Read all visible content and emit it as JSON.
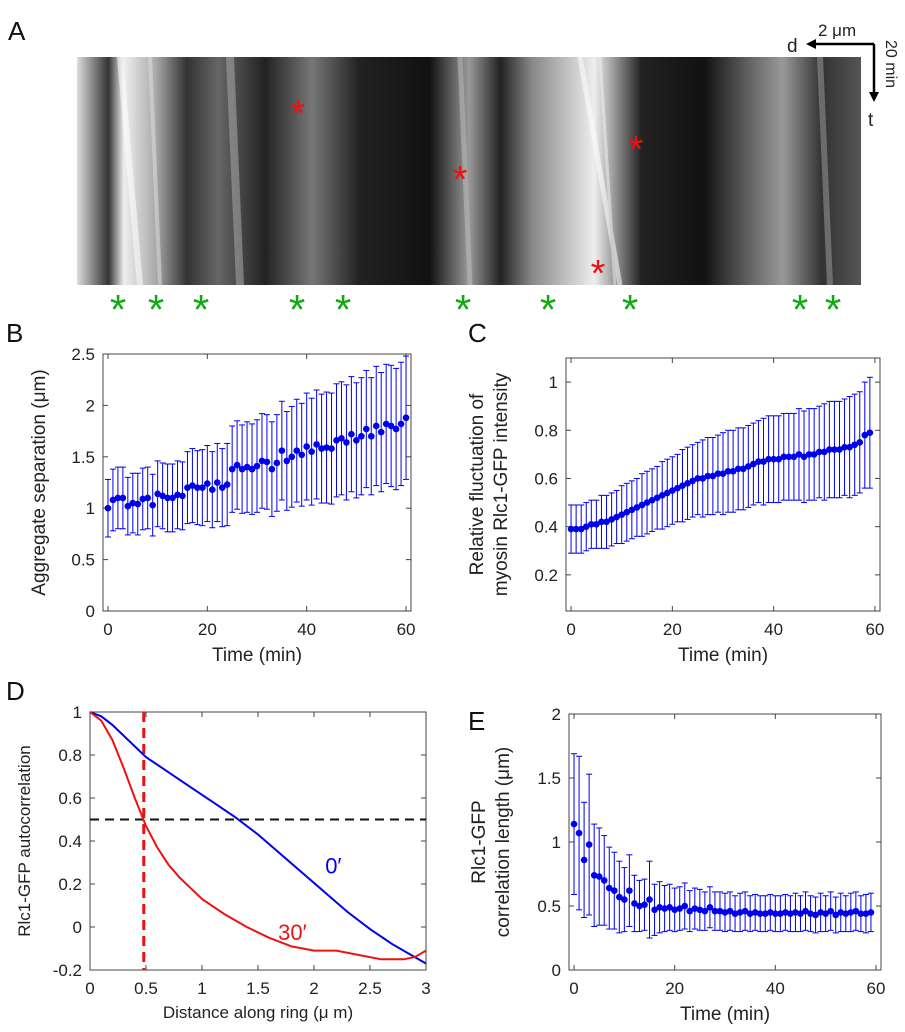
{
  "panels": {
    "a": {
      "letter": "A",
      "scale_bar": {
        "dir": "d",
        "length": "2 μm",
        "time": "20 min",
        "tdir": "t"
      },
      "red_star_count": 4,
      "green_star_count": 10
    }
  },
  "colors": {
    "blue": "#0000ee",
    "red": "#ee1111",
    "green": "#11aa11",
    "black_dash": "#111111"
  },
  "chart_data": [
    {
      "id": "B",
      "letter": "B",
      "type": "scatter",
      "xlabel": "Time (min)",
      "ylabel": "Aggregate separation (μm)",
      "xlim": [
        -1,
        61
      ],
      "ylim": [
        0,
        2.5
      ],
      "xticks": [
        0,
        20,
        40,
        60
      ],
      "yticks": [
        0,
        0.5,
        1,
        1.5,
        2,
        2.5
      ],
      "xticklabels": [
        "0",
        "20",
        "40",
        "60"
      ],
      "yticklabels": [
        "0",
        "0.5",
        "1",
        "1.5",
        "2",
        "2.5"
      ],
      "x": [
        0,
        1,
        2,
        3,
        4,
        5,
        6,
        7,
        8,
        9,
        10,
        11,
        12,
        13,
        14,
        15,
        16,
        17,
        18,
        19,
        20,
        21,
        22,
        23,
        24,
        25,
        26,
        27,
        28,
        29,
        30,
        31,
        32,
        33,
        34,
        35,
        36,
        37,
        38,
        39,
        40,
        41,
        42,
        43,
        44,
        45,
        46,
        47,
        48,
        49,
        50,
        51,
        52,
        53,
        54,
        55,
        56,
        57,
        58,
        59,
        60
      ],
      "y": [
        1.0,
        1.08,
        1.1,
        1.1,
        1.02,
        1.05,
        1.04,
        1.09,
        1.1,
        1.03,
        1.14,
        1.12,
        1.1,
        1.1,
        1.13,
        1.12,
        1.2,
        1.22,
        1.2,
        1.2,
        1.24,
        1.18,
        1.25,
        1.2,
        1.23,
        1.38,
        1.42,
        1.38,
        1.4,
        1.38,
        1.41,
        1.46,
        1.45,
        1.38,
        1.44,
        1.56,
        1.46,
        1.5,
        1.56,
        1.52,
        1.6,
        1.55,
        1.62,
        1.58,
        1.59,
        1.58,
        1.66,
        1.68,
        1.64,
        1.72,
        1.66,
        1.7,
        1.77,
        1.7,
        1.8,
        1.74,
        1.82,
        1.8,
        1.77,
        1.82,
        1.88
      ],
      "err": [
        0.28,
        0.3,
        0.3,
        0.3,
        0.28,
        0.29,
        0.3,
        0.3,
        0.3,
        0.3,
        0.32,
        0.32,
        0.33,
        0.33,
        0.33,
        0.33,
        0.35,
        0.36,
        0.36,
        0.37,
        0.37,
        0.37,
        0.38,
        0.38,
        0.4,
        0.42,
        0.43,
        0.43,
        0.44,
        0.44,
        0.45,
        0.46,
        0.46,
        0.46,
        0.47,
        0.48,
        0.48,
        0.49,
        0.5,
        0.5,
        0.52,
        0.52,
        0.53,
        0.53,
        0.54,
        0.54,
        0.55,
        0.55,
        0.56,
        0.56,
        0.56,
        0.57,
        0.57,
        0.57,
        0.58,
        0.58,
        0.58,
        0.59,
        0.59,
        0.6,
        0.6
      ],
      "grid": false
    },
    {
      "id": "C",
      "letter": "C",
      "type": "scatter",
      "xlabel": "Time (min)",
      "ylabel_lines": [
        "Relative fluctuation of",
        "myosin Rlc1-GFP intensity"
      ],
      "xlim": [
        -1,
        61
      ],
      "ylim": [
        0.05,
        1.1
      ],
      "xticks": [
        0,
        20,
        40,
        60
      ],
      "yticks": [
        0.2,
        0.4,
        0.6,
        0.8,
        1
      ],
      "xticklabels": [
        "0",
        "20",
        "40",
        "60"
      ],
      "yticklabels": [
        "0.2",
        "0.4",
        "0.6",
        "0.8",
        "1"
      ],
      "x": [
        0,
        1,
        2,
        3,
        4,
        5,
        6,
        7,
        8,
        9,
        10,
        11,
        12,
        13,
        14,
        15,
        16,
        17,
        18,
        19,
        20,
        21,
        22,
        23,
        24,
        25,
        26,
        27,
        28,
        29,
        30,
        31,
        32,
        33,
        34,
        35,
        36,
        37,
        38,
        39,
        40,
        41,
        42,
        43,
        44,
        45,
        46,
        47,
        48,
        49,
        50,
        51,
        52,
        53,
        54,
        55,
        56,
        57,
        58,
        59
      ],
      "y": [
        0.39,
        0.39,
        0.39,
        0.4,
        0.41,
        0.41,
        0.42,
        0.42,
        0.43,
        0.44,
        0.45,
        0.46,
        0.47,
        0.48,
        0.49,
        0.5,
        0.51,
        0.52,
        0.53,
        0.54,
        0.55,
        0.56,
        0.57,
        0.58,
        0.59,
        0.6,
        0.6,
        0.61,
        0.61,
        0.62,
        0.62,
        0.63,
        0.63,
        0.64,
        0.64,
        0.65,
        0.66,
        0.67,
        0.67,
        0.68,
        0.68,
        0.68,
        0.69,
        0.69,
        0.69,
        0.7,
        0.69,
        0.7,
        0.7,
        0.71,
        0.71,
        0.72,
        0.72,
        0.72,
        0.73,
        0.73,
        0.74,
        0.75,
        0.78,
        0.79
      ],
      "err": [
        0.1,
        0.1,
        0.1,
        0.1,
        0.1,
        0.1,
        0.11,
        0.11,
        0.11,
        0.11,
        0.12,
        0.12,
        0.12,
        0.12,
        0.13,
        0.13,
        0.13,
        0.13,
        0.14,
        0.14,
        0.14,
        0.14,
        0.15,
        0.15,
        0.15,
        0.15,
        0.16,
        0.16,
        0.16,
        0.16,
        0.17,
        0.17,
        0.17,
        0.17,
        0.17,
        0.17,
        0.17,
        0.17,
        0.18,
        0.18,
        0.18,
        0.18,
        0.18,
        0.18,
        0.18,
        0.19,
        0.19,
        0.19,
        0.19,
        0.19,
        0.2,
        0.2,
        0.2,
        0.2,
        0.2,
        0.21,
        0.21,
        0.21,
        0.22,
        0.23
      ],
      "grid": false
    },
    {
      "id": "D",
      "letter": "D",
      "type": "line",
      "xlabel": "Distance along ring (μ m)",
      "ylabel": "Rlc1-GFP autocorrelation",
      "xlim": [
        0,
        3
      ],
      "ylim": [
        -0.2,
        1
      ],
      "xticks": [
        0,
        0.5,
        1,
        1.5,
        2,
        2.5,
        3
      ],
      "yticks": [
        -0.2,
        0,
        0.2,
        0.4,
        0.6,
        0.8,
        1
      ],
      "xticklabels": [
        "0",
        "0.5",
        "1",
        "1.5",
        "2",
        "2.5",
        "3"
      ],
      "yticklabels": [
        "-0.2",
        "0",
        "0.2",
        "0.4",
        "0.6",
        "0.8",
        "1"
      ],
      "series": [
        {
          "name": "0′",
          "color": "#0000ee",
          "x": [
            0,
            0.1,
            0.2,
            0.3,
            0.4,
            0.5,
            0.7,
            0.9,
            1.1,
            1.3,
            1.5,
            1.7,
            1.9,
            2.1,
            2.3,
            2.5,
            2.7,
            2.9,
            3.0
          ],
          "y": [
            1.0,
            0.98,
            0.94,
            0.89,
            0.84,
            0.79,
            0.72,
            0.65,
            0.58,
            0.51,
            0.43,
            0.34,
            0.25,
            0.16,
            0.07,
            -0.01,
            -0.08,
            -0.14,
            -0.17
          ]
        },
        {
          "name": "30′",
          "color": "#ee1111",
          "x": [
            0,
            0.1,
            0.2,
            0.3,
            0.4,
            0.5,
            0.6,
            0.7,
            0.8,
            0.9,
            1.0,
            1.2,
            1.4,
            1.6,
            1.8,
            2.0,
            2.2,
            2.4,
            2.6,
            2.8,
            2.9,
            3.0
          ],
          "y": [
            1.0,
            0.96,
            0.87,
            0.74,
            0.6,
            0.47,
            0.37,
            0.29,
            0.23,
            0.18,
            0.13,
            0.06,
            0.0,
            -0.05,
            -0.09,
            -0.11,
            -0.11,
            -0.13,
            -0.15,
            -0.15,
            -0.14,
            -0.11
          ]
        }
      ],
      "hline": 0.5,
      "vline": 0.48,
      "grid": false
    },
    {
      "id": "E",
      "letter": "E",
      "type": "scatter",
      "xlabel": "Time (min)",
      "ylabel_lines": [
        "Rlc1-GFP",
        "correlation length (μm)"
      ],
      "xlim": [
        -1,
        61
      ],
      "ylim": [
        0,
        2
      ],
      "xticks": [
        0,
        20,
        40,
        60
      ],
      "yticks": [
        0,
        0.5,
        1,
        1.5,
        2
      ],
      "xticklabels": [
        "0",
        "20",
        "40",
        "60"
      ],
      "yticklabels": [
        "0",
        "0.5",
        "1",
        "1.5",
        "2"
      ],
      "x": [
        0,
        1,
        2,
        3,
        4,
        5,
        6,
        7,
        8,
        9,
        10,
        11,
        12,
        13,
        14,
        15,
        16,
        17,
        18,
        19,
        20,
        21,
        22,
        23,
        24,
        25,
        26,
        27,
        28,
        29,
        30,
        31,
        32,
        33,
        34,
        35,
        36,
        37,
        38,
        39,
        40,
        41,
        42,
        43,
        44,
        45,
        46,
        47,
        48,
        49,
        50,
        51,
        52,
        53,
        54,
        55,
        56,
        57,
        58,
        59
      ],
      "y": [
        1.14,
        1.07,
        0.86,
        0.98,
        0.74,
        0.73,
        0.7,
        0.64,
        0.62,
        0.57,
        0.55,
        0.62,
        0.52,
        0.5,
        0.51,
        0.55,
        0.47,
        0.49,
        0.48,
        0.49,
        0.47,
        0.48,
        0.5,
        0.46,
        0.48,
        0.47,
        0.46,
        0.49,
        0.46,
        0.46,
        0.45,
        0.46,
        0.44,
        0.45,
        0.46,
        0.44,
        0.45,
        0.44,
        0.44,
        0.45,
        0.44,
        0.44,
        0.45,
        0.44,
        0.45,
        0.44,
        0.46,
        0.44,
        0.43,
        0.45,
        0.44,
        0.46,
        0.43,
        0.45,
        0.44,
        0.45,
        0.46,
        0.44,
        0.44,
        0.45
      ],
      "err": [
        0.55,
        0.6,
        0.45,
        0.55,
        0.4,
        0.38,
        0.35,
        0.32,
        0.3,
        0.28,
        0.25,
        0.28,
        0.22,
        0.2,
        0.2,
        0.3,
        0.2,
        0.2,
        0.18,
        0.18,
        0.17,
        0.17,
        0.18,
        0.16,
        0.16,
        0.16,
        0.15,
        0.16,
        0.15,
        0.15,
        0.15,
        0.15,
        0.14,
        0.15,
        0.15,
        0.14,
        0.14,
        0.14,
        0.14,
        0.14,
        0.14,
        0.14,
        0.14,
        0.14,
        0.15,
        0.14,
        0.15,
        0.14,
        0.14,
        0.15,
        0.14,
        0.15,
        0.14,
        0.15,
        0.14,
        0.15,
        0.15,
        0.14,
        0.15,
        0.15
      ],
      "grid": false
    }
  ]
}
